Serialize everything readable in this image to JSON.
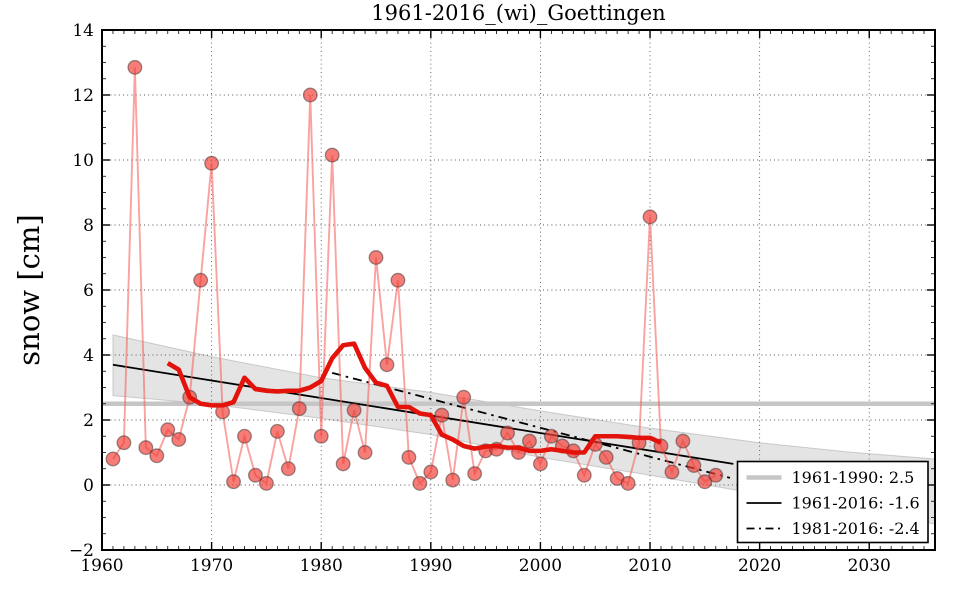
{
  "figure": {
    "title": "1961-2016_(wi)_Goettingen",
    "ylabel": "snow [cm]"
  },
  "chart_data": {
    "type": "line",
    "title": "1961-2016_(wi)_Goettingen",
    "xlabel": "",
    "ylabel": "snow [cm]",
    "xlim": [
      1960,
      2036
    ],
    "ylim": [
      -2,
      14
    ],
    "grid": true,
    "legend_position": "lower right",
    "xticks": [
      1960,
      1970,
      1980,
      1990,
      2000,
      2010,
      2020,
      2030
    ],
    "xtick_labels": [
      "1960",
      "1970",
      "1980",
      "1990",
      "2000",
      "2010",
      "2020",
      "2030"
    ],
    "yticks": [
      -2,
      0,
      2,
      4,
      6,
      8,
      10,
      12,
      14
    ],
    "ytick_labels": [
      "−2",
      "0",
      "2",
      "4",
      "6",
      "8",
      "10",
      "12",
      "14"
    ],
    "series": [
      {
        "name": "annual-snow",
        "style": "pink-markers-line",
        "years": [
          1961,
          1962,
          1963,
          1964,
          1965,
          1966,
          1967,
          1968,
          1969,
          1970,
          1971,
          1972,
          1973,
          1974,
          1975,
          1976,
          1977,
          1978,
          1979,
          1980,
          1981,
          1982,
          1983,
          1984,
          1985,
          1986,
          1987,
          1988,
          1989,
          1990,
          1991,
          1992,
          1993,
          1994,
          1995,
          1996,
          1997,
          1998,
          1999,
          2000,
          2001,
          2002,
          2003,
          2004,
          2005,
          2006,
          2007,
          2008,
          2009,
          2010,
          2011,
          2012,
          2013,
          2014,
          2015,
          2016
        ],
        "values": [
          0.8,
          1.3,
          12.85,
          1.15,
          0.9,
          1.7,
          1.4,
          2.7,
          6.3,
          9.9,
          2.25,
          0.1,
          1.5,
          0.3,
          0.05,
          1.65,
          0.5,
          2.35,
          12.0,
          1.5,
          10.15,
          0.65,
          2.3,
          1.0,
          7.0,
          3.7,
          6.3,
          0.85,
          0.05,
          0.4,
          2.15,
          0.15,
          2.7,
          0.35,
          1.05,
          1.1,
          1.6,
          1.0,
          1.35,
          0.65,
          1.5,
          1.2,
          1.05,
          0.3,
          1.25,
          0.85,
          0.2,
          0.05,
          1.3,
          8.25,
          1.2,
          0.4,
          1.35,
          0.6,
          0.1,
          0.3
        ]
      },
      {
        "name": "running-mean",
        "style": "red-thick-line",
        "years": [
          1966,
          1967,
          1968,
          1969,
          1970,
          1971,
          1972,
          1973,
          1974,
          1975,
          1976,
          1977,
          1978,
          1979,
          1980,
          1981,
          1982,
          1983,
          1984,
          1985,
          1986,
          1987,
          1988,
          1989,
          1990,
          1991,
          1992,
          1993,
          1994,
          1995,
          1996,
          1997,
          1998,
          1999,
          2000,
          2001,
          2002,
          2003,
          2004,
          2005,
          2006,
          2007,
          2008,
          2009,
          2010,
          2011
        ],
        "values": [
          3.75,
          3.55,
          2.7,
          2.5,
          2.45,
          2.45,
          2.55,
          3.3,
          2.95,
          2.9,
          2.88,
          2.9,
          2.9,
          3.0,
          3.2,
          3.9,
          4.3,
          4.35,
          3.6,
          3.15,
          3.05,
          2.4,
          2.4,
          2.2,
          2.15,
          1.55,
          1.4,
          1.2,
          1.12,
          1.18,
          1.2,
          1.15,
          1.15,
          1.05,
          1.05,
          1.1,
          1.05,
          1.0,
          1.0,
          1.5,
          1.5,
          1.5,
          1.48,
          1.45,
          1.45,
          1.3
        ]
      },
      {
        "name": "mean-1961-1990",
        "style": "gray-thick-line",
        "x": [
          1960,
          2036
        ],
        "y": [
          2.5,
          2.5
        ]
      },
      {
        "name": "trend-1961-2016",
        "style": "black-solid-line",
        "x": [
          1961,
          2017.6
        ],
        "y": [
          3.7,
          0.65
        ]
      },
      {
        "name": "trend-1981-2016",
        "style": "black-dashdot-line",
        "x": [
          1981,
          2017.3
        ],
        "y": [
          3.45,
          0.22
        ]
      }
    ],
    "confidence_band": {
      "x": [
        1961,
        1970,
        1980,
        1990,
        2000,
        2010,
        2020,
        2028,
        2036
      ],
      "top": [
        4.62,
        3.95,
        3.3,
        2.85,
        2.28,
        1.75,
        1.3,
        1.02,
        0.8
      ],
      "bottom": [
        2.75,
        2.48,
        2.05,
        1.55,
        0.85,
        0.3,
        -0.28,
        -0.75,
        -1.2
      ]
    },
    "legend": [
      {
        "sample": "gray-thick-line",
        "label": "1961-1990: 2.5"
      },
      {
        "sample": "black-solid-line",
        "label": "1961-2016: -1.6"
      },
      {
        "sample": "black-dashdot-line",
        "label": "1981-2016: -2.4"
      }
    ]
  },
  "colors": {
    "pink_line": "rgba(246,100,95,0.6)",
    "marker_fill": "rgba(240,62,55,0.68)",
    "marker_edge": "rgba(60,45,45,0.5)",
    "red_thick": "#e3130b",
    "gray_line": "#c6c6c6",
    "band_fill": "rgba(130,130,130,0.22)",
    "band_edge": "rgba(130,130,130,0.35)",
    "grid": "#555555",
    "axis": "#000000",
    "legend_bg": "#ffffff"
  }
}
